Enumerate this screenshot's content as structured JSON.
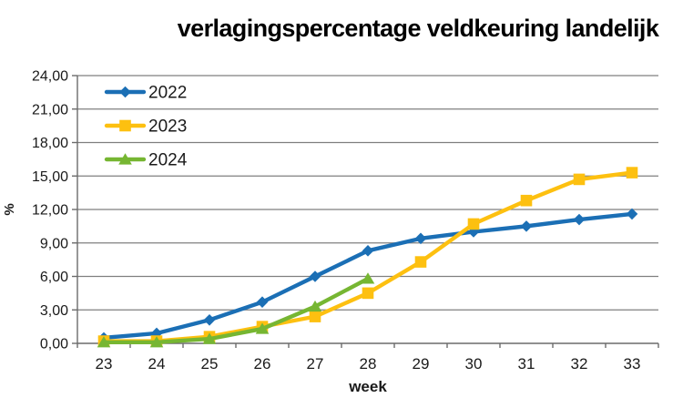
{
  "chart_data": {
    "type": "line",
    "title": "verlagingspercentage veldkeuring landelijk",
    "xlabel": "week",
    "ylabel": "%",
    "x_categories": [
      "23",
      "24",
      "25",
      "26",
      "27",
      "28",
      "29",
      "30",
      "31",
      "32",
      "33"
    ],
    "ylim": [
      0,
      24
    ],
    "y_tick_step": 3,
    "y_tick_labels": [
      "0,00",
      "3,00",
      "6,00",
      "9,00",
      "12,00",
      "15,00",
      "18,00",
      "21,00",
      "24,00"
    ],
    "grid": true,
    "legend_position": "top-left-inside",
    "series": [
      {
        "name": "2022",
        "color": "#1B6FB5",
        "marker": "diamond",
        "values": [
          0.5,
          0.9,
          2.1,
          3.7,
          6.0,
          8.3,
          9.4,
          10.0,
          10.5,
          11.1,
          11.6
        ]
      },
      {
        "name": "2023",
        "color": "#FDC010",
        "marker": "square",
        "values": [
          0.2,
          0.2,
          0.6,
          1.5,
          2.4,
          4.5,
          7.3,
          10.7,
          12.8,
          14.7,
          15.3
        ]
      },
      {
        "name": "2024",
        "color": "#76B632",
        "marker": "triangle",
        "values": [
          0.1,
          0.1,
          0.4,
          1.3,
          3.3,
          5.8
        ]
      }
    ]
  },
  "colors": {
    "gridline": "#7F7F7F",
    "axis": "#6B6B6B",
    "tick_label": "#1A1A1A",
    "title": "#000000"
  }
}
